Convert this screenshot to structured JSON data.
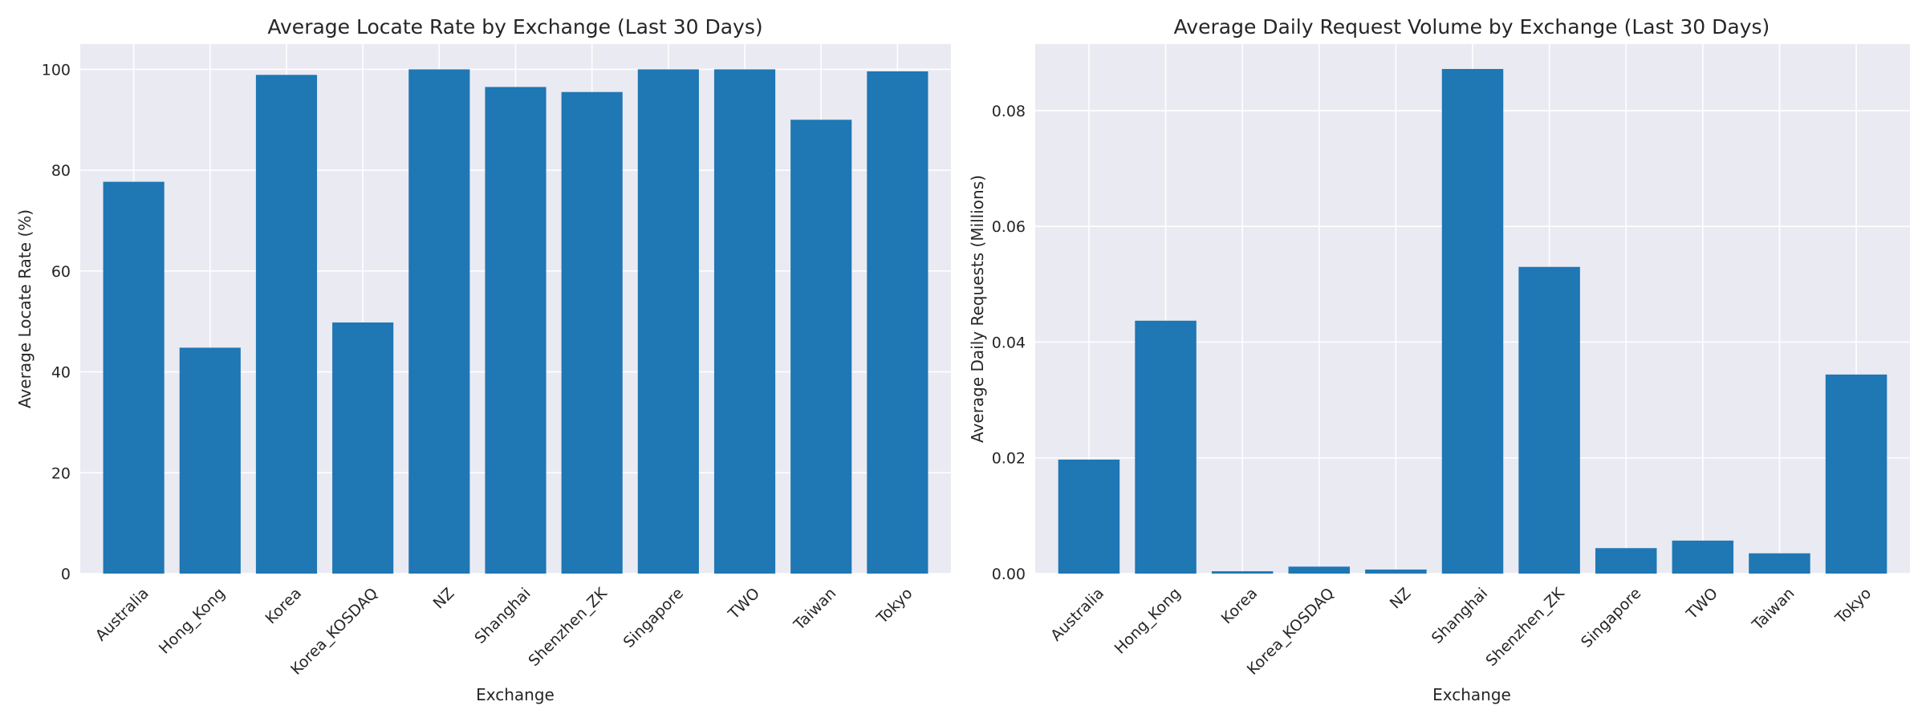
{
  "chart_data": [
    {
      "type": "bar",
      "title": "Average Locate Rate by Exchange (Last 30 Days)",
      "xlabel": "Exchange",
      "ylabel": "Average Locate Rate (%)",
      "categories": [
        "Australia",
        "Hong_Kong",
        "Korea",
        "Korea_KOSDAQ",
        "NZ",
        "Shanghai",
        "Shenzhen_ZK",
        "Singapore",
        "TWO",
        "Taiwan",
        "Tokyo"
      ],
      "values": [
        77.7,
        44.8,
        98.9,
        49.8,
        100.0,
        96.5,
        95.5,
        100.0,
        100.0,
        90.0,
        99.6
      ],
      "ylim": [
        0,
        105
      ],
      "yticks": [
        0,
        20,
        40,
        60,
        80,
        100
      ],
      "ytick_labels": [
        "0",
        "20",
        "40",
        "60",
        "80",
        "100"
      ],
      "grid": true,
      "bar_color": "#1f77b4",
      "background": "#eaeaf2"
    },
    {
      "type": "bar",
      "title": "Average Daily Request Volume by Exchange (Last 30 Days)",
      "xlabel": "Exchange",
      "ylabel": "Average Daily Requests (Millions)",
      "categories": [
        "Australia",
        "Hong_Kong",
        "Korea",
        "Korea_KOSDAQ",
        "NZ",
        "Shanghai",
        "Shenzhen_ZK",
        "Singapore",
        "TWO",
        "Taiwan",
        "Tokyo"
      ],
      "values": [
        0.0197,
        0.0437,
        0.0004,
        0.0012,
        0.0007,
        0.0872,
        0.053,
        0.0044,
        0.0057,
        0.0035,
        0.0344
      ],
      "ylim": [
        0,
        0.0915
      ],
      "yticks": [
        0,
        0.02,
        0.04,
        0.06,
        0.08
      ],
      "ytick_labels": [
        "0.00",
        "0.02",
        "0.04",
        "0.06",
        "0.08"
      ],
      "grid": true,
      "bar_color": "#1f77b4",
      "background": "#eaeaf2"
    }
  ]
}
